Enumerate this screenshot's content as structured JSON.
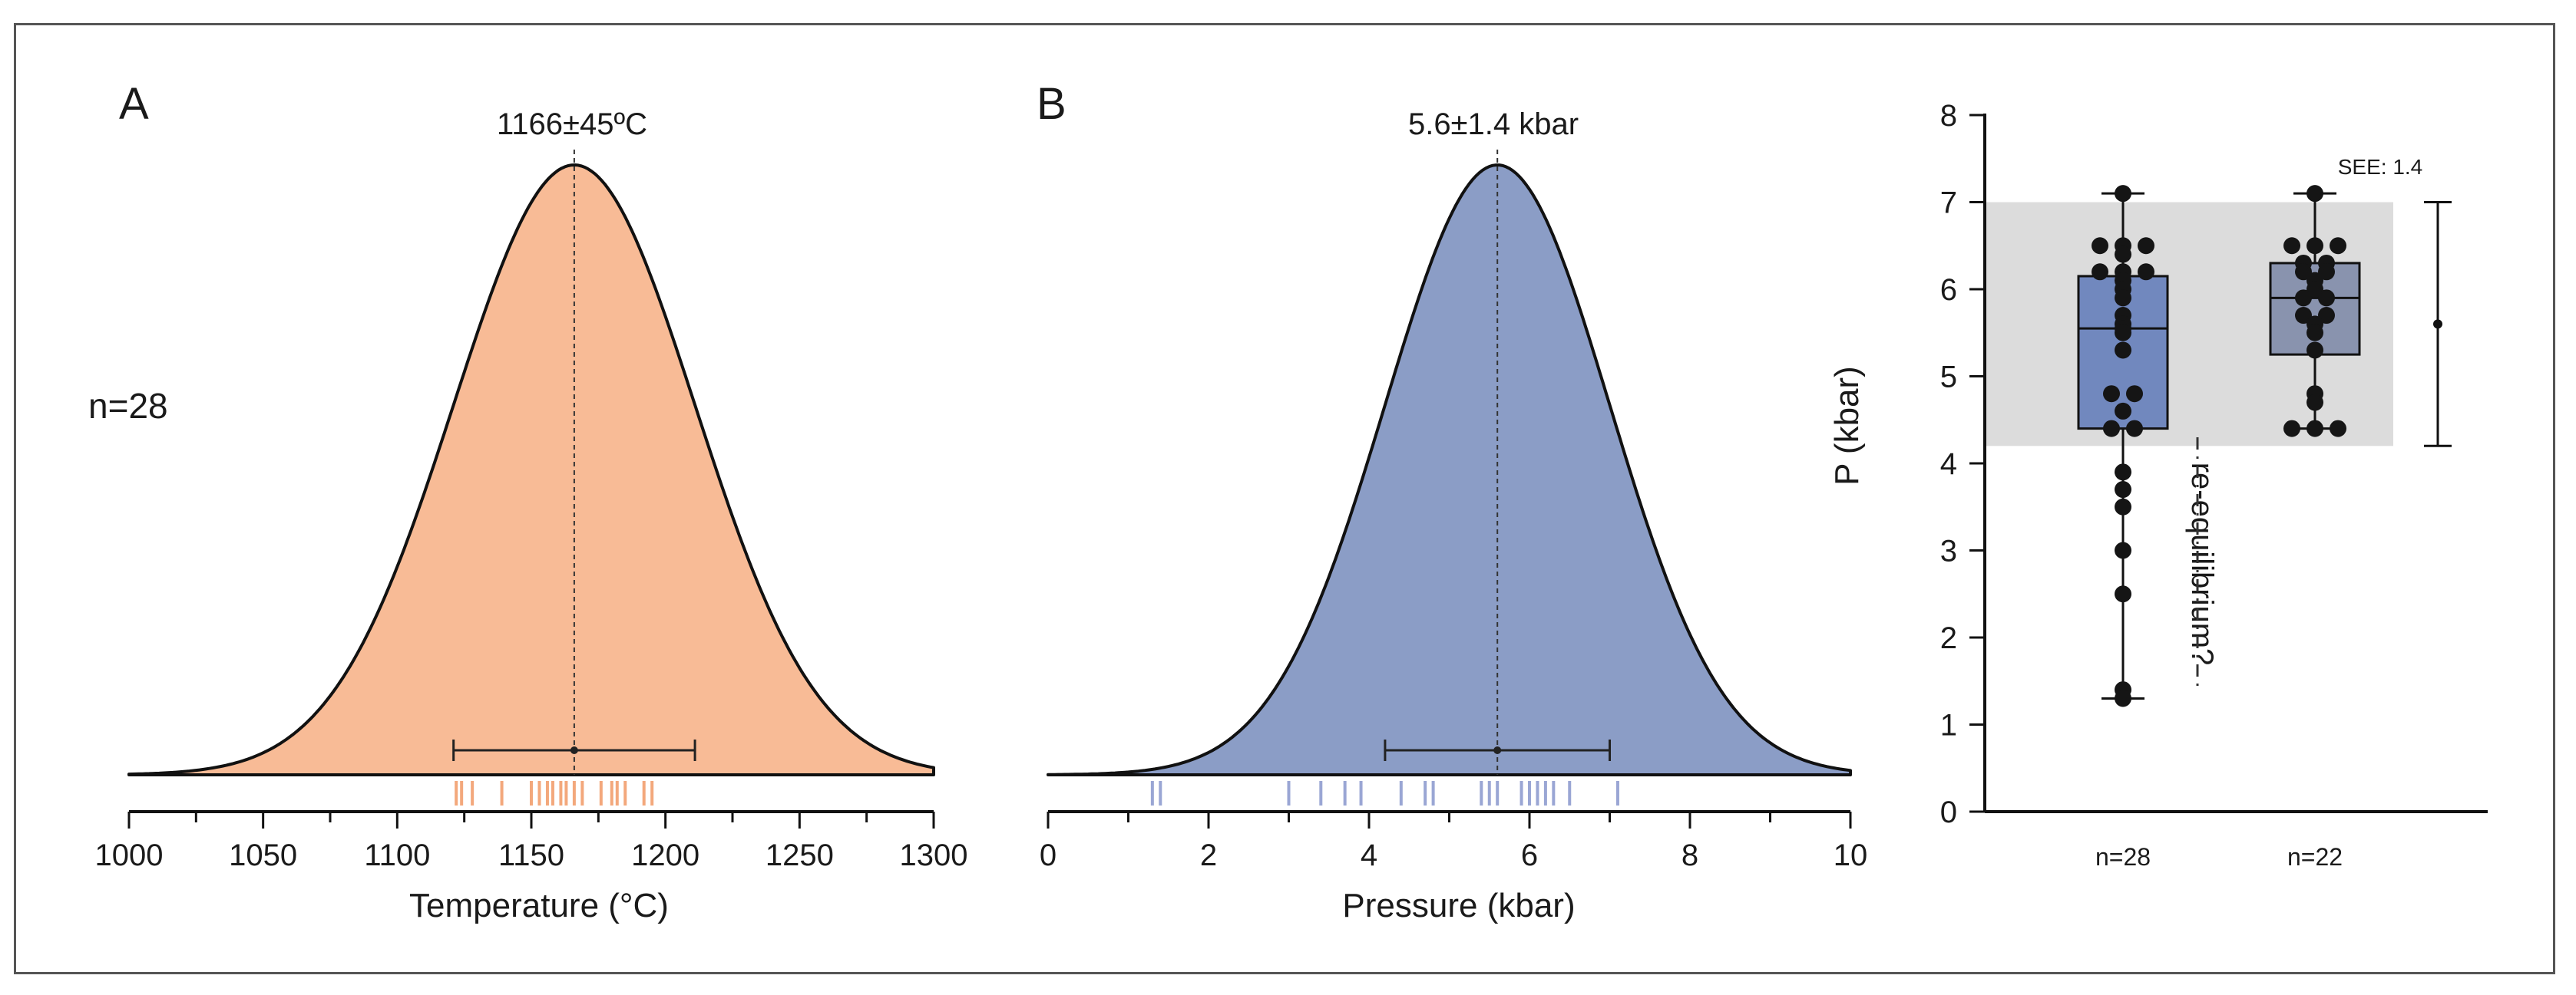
{
  "chart_data": [
    {
      "panel_label": "A",
      "type": "area",
      "annotation": "1166±45ºC",
      "n_label": "n=28",
      "xlabel": "Temperature (°C)",
      "ylabel": "",
      "xlim": [
        1000,
        1300
      ],
      "xticks": [
        1000,
        1050,
        1100,
        1150,
        1200,
        1250,
        1300
      ],
      "xtick_labels": [
        "1000",
        "1050",
        "1100",
        "1150",
        "1200",
        "1250",
        "1300"
      ],
      "distribution": {
        "mean": 1166,
        "sd": 45
      },
      "errorbar": [
        1121,
        1211
      ],
      "rug": [
        1122,
        1124,
        1128,
        1139,
        1150,
        1153,
        1156,
        1158,
        1161,
        1163,
        1166,
        1169,
        1176,
        1180,
        1182,
        1185,
        1192,
        1195
      ],
      "fill_color": "#f8bb96",
      "rug_color": "#f3a87c"
    },
    {
      "panel_label": "B",
      "type": "area",
      "annotation": "5.6±1.4 kbar",
      "xlabel": "Pressure (kbar)",
      "ylabel": "",
      "xlim": [
        0,
        10
      ],
      "xticks": [
        0,
        2,
        4,
        6,
        8,
        10
      ],
      "xtick_labels": [
        "0",
        "2",
        "4",
        "6",
        "8",
        "10"
      ],
      "distribution": {
        "mean": 5.6,
        "sd": 1.4
      },
      "errorbar": [
        4.2,
        7.0
      ],
      "rug": [
        1.3,
        1.4,
        3.0,
        3.4,
        3.7,
        3.9,
        4.4,
        4.7,
        4.8,
        5.4,
        5.5,
        5.6,
        5.9,
        6.0,
        6.1,
        6.2,
        6.3,
        6.5,
        7.1
      ],
      "fill_color": "#8b9dc6",
      "rug_color": "#9aa6d4"
    },
    {
      "type": "box",
      "xlabel": "",
      "ylabel": "P (kbar)",
      "ylim": [
        0,
        8
      ],
      "yticks": [
        0,
        1,
        2,
        3,
        4,
        5,
        6,
        7,
        8
      ],
      "ytick_labels": [
        "0",
        "1",
        "2",
        "3",
        "4",
        "5",
        "6",
        "7",
        "8"
      ],
      "band": [
        4.2,
        7.0
      ],
      "band_color": "#dcdcdc",
      "see_label": "SEE: 1.4",
      "see_bar": {
        "low": 4.2,
        "high": 7.0,
        "center": 5.6
      },
      "annotation": "re-equilibrium?",
      "annotation_range": [
        1.4,
        4.3
      ],
      "boxes": [
        {
          "label": "n=28",
          "min": 1.3,
          "q1": 4.4,
          "median": 5.55,
          "q3": 6.15,
          "max": 7.1,
          "color": "#7188be",
          "points": [
            7.1,
            6.5,
            6.5,
            6.5,
            6.4,
            6.2,
            6.2,
            6.2,
            6.1,
            6.0,
            5.9,
            5.7,
            5.6,
            5.55,
            5.5,
            5.3,
            4.8,
            4.8,
            4.6,
            4.4,
            4.4,
            3.9,
            3.7,
            3.5,
            3.0,
            2.5,
            1.4,
            1.3
          ]
        },
        {
          "label": "n=22",
          "min": 4.4,
          "q1": 5.25,
          "median": 5.9,
          "q3": 6.3,
          "max": 7.1,
          "color": "#8993ae",
          "points": [
            7.1,
            6.5,
            6.5,
            6.5,
            6.3,
            6.3,
            6.2,
            6.2,
            6.1,
            6.0,
            5.9,
            5.9,
            5.7,
            5.7,
            5.6,
            5.5,
            5.3,
            4.8,
            4.7,
            4.4,
            4.4,
            4.4
          ]
        }
      ]
    }
  ]
}
